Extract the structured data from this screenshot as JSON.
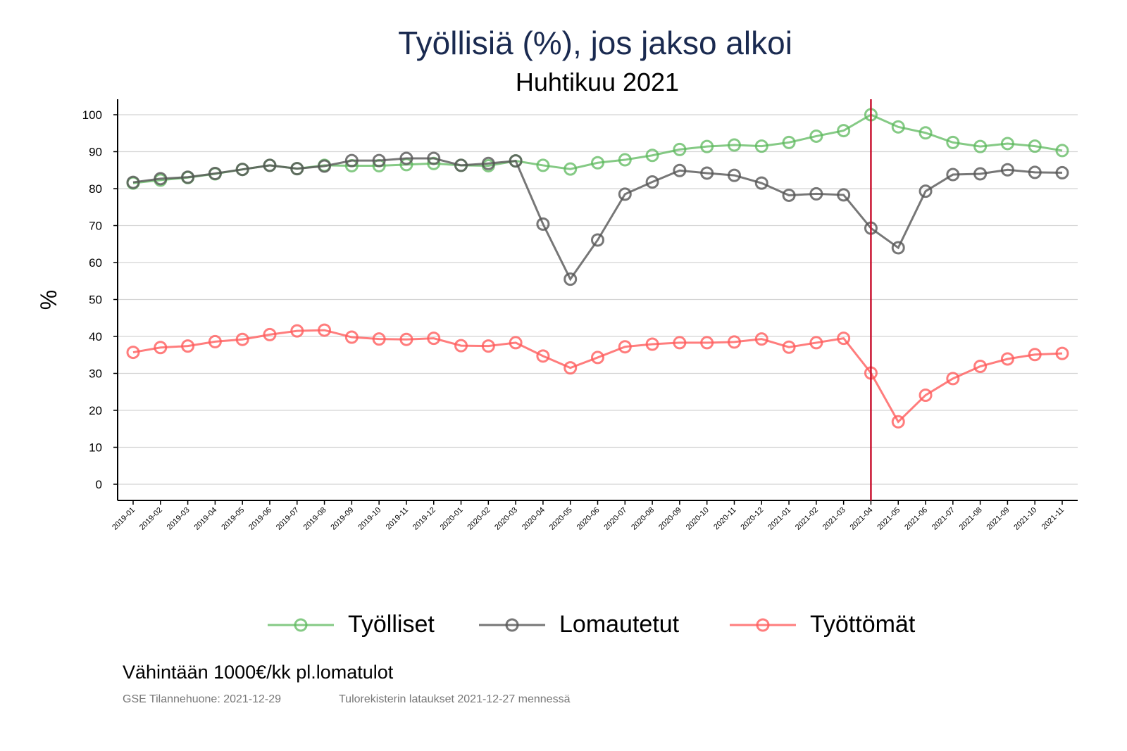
{
  "chart_data": {
    "type": "line",
    "title": "Työllisiä (%), jos jakso alkoi",
    "subtitle": "Huhtikuu 2021",
    "xlabel": "",
    "ylabel": "%",
    "ylim": [
      -4,
      104
    ],
    "yticks": [
      0,
      10,
      20,
      30,
      40,
      50,
      60,
      70,
      80,
      90,
      100
    ],
    "grid": true,
    "legend_position": "bottom",
    "reference_line": {
      "x": "2021-04",
      "color": "#c8102e"
    },
    "categories": [
      "2019-01",
      "2019-02",
      "2019-03",
      "2019-04",
      "2019-05",
      "2019-06",
      "2019-07",
      "2019-08",
      "2019-09",
      "2019-10",
      "2019-11",
      "2019-12",
      "2020-01",
      "2020-02",
      "2020-03",
      "2020-04",
      "2020-05",
      "2020-06",
      "2020-07",
      "2020-08",
      "2020-09",
      "2020-10",
      "2020-11",
      "2020-12",
      "2021-01",
      "2021-02",
      "2021-03",
      "2021-04",
      "2021-05",
      "2021-06",
      "2021-07",
      "2021-08",
      "2021-09",
      "2021-10",
      "2021-11"
    ],
    "series": [
      {
        "name": "Työlliset",
        "color": "#5cb85c",
        "values": [
          81.5,
          82.3,
          83.0,
          84.0,
          85.2,
          86.3,
          85.4,
          86.3,
          86.2,
          86.2,
          86.5,
          86.8,
          86.3,
          86.2,
          87.5,
          86.3,
          85.3,
          87.0,
          87.8,
          89.0,
          90.6,
          91.4,
          91.8,
          91.5,
          92.5,
          94.2,
          95.7,
          100.0,
          96.7,
          95.1,
          92.5,
          91.4,
          92.2,
          91.5,
          90.3
        ]
      },
      {
        "name": "Lomautetut",
        "color": "#555555",
        "values": [
          81.7,
          82.7,
          83.1,
          84.1,
          85.2,
          86.3,
          85.4,
          86.1,
          87.6,
          87.6,
          88.2,
          88.2,
          86.3,
          86.8,
          87.5,
          70.4,
          55.5,
          66.1,
          78.5,
          81.8,
          84.9,
          84.2,
          83.6,
          81.5,
          78.2,
          78.6,
          78.3,
          69.3,
          64.0,
          79.3,
          83.8,
          84.0,
          85.1,
          84.4,
          84.3
        ]
      },
      {
        "name": "Työttömät",
        "color": "#ff5c5c",
        "values": [
          35.7,
          37.0,
          37.4,
          38.6,
          39.2,
          40.5,
          41.5,
          41.7,
          39.8,
          39.3,
          39.2,
          39.5,
          37.5,
          37.4,
          38.3,
          34.7,
          31.5,
          34.3,
          37.2,
          37.9,
          38.3,
          38.3,
          38.5,
          39.3,
          37.1,
          38.3,
          39.5,
          30.1,
          16.9,
          24.1,
          28.6,
          31.9,
          33.9,
          35.1,
          35.4
        ]
      }
    ]
  },
  "note": "Vähintään 1000€/kk pl.lomatulot",
  "source_left": "GSE Tilannehuone: 2021-12-29",
  "source_right": "Tulorekisterin lataukset 2021-12-27 mennessä"
}
